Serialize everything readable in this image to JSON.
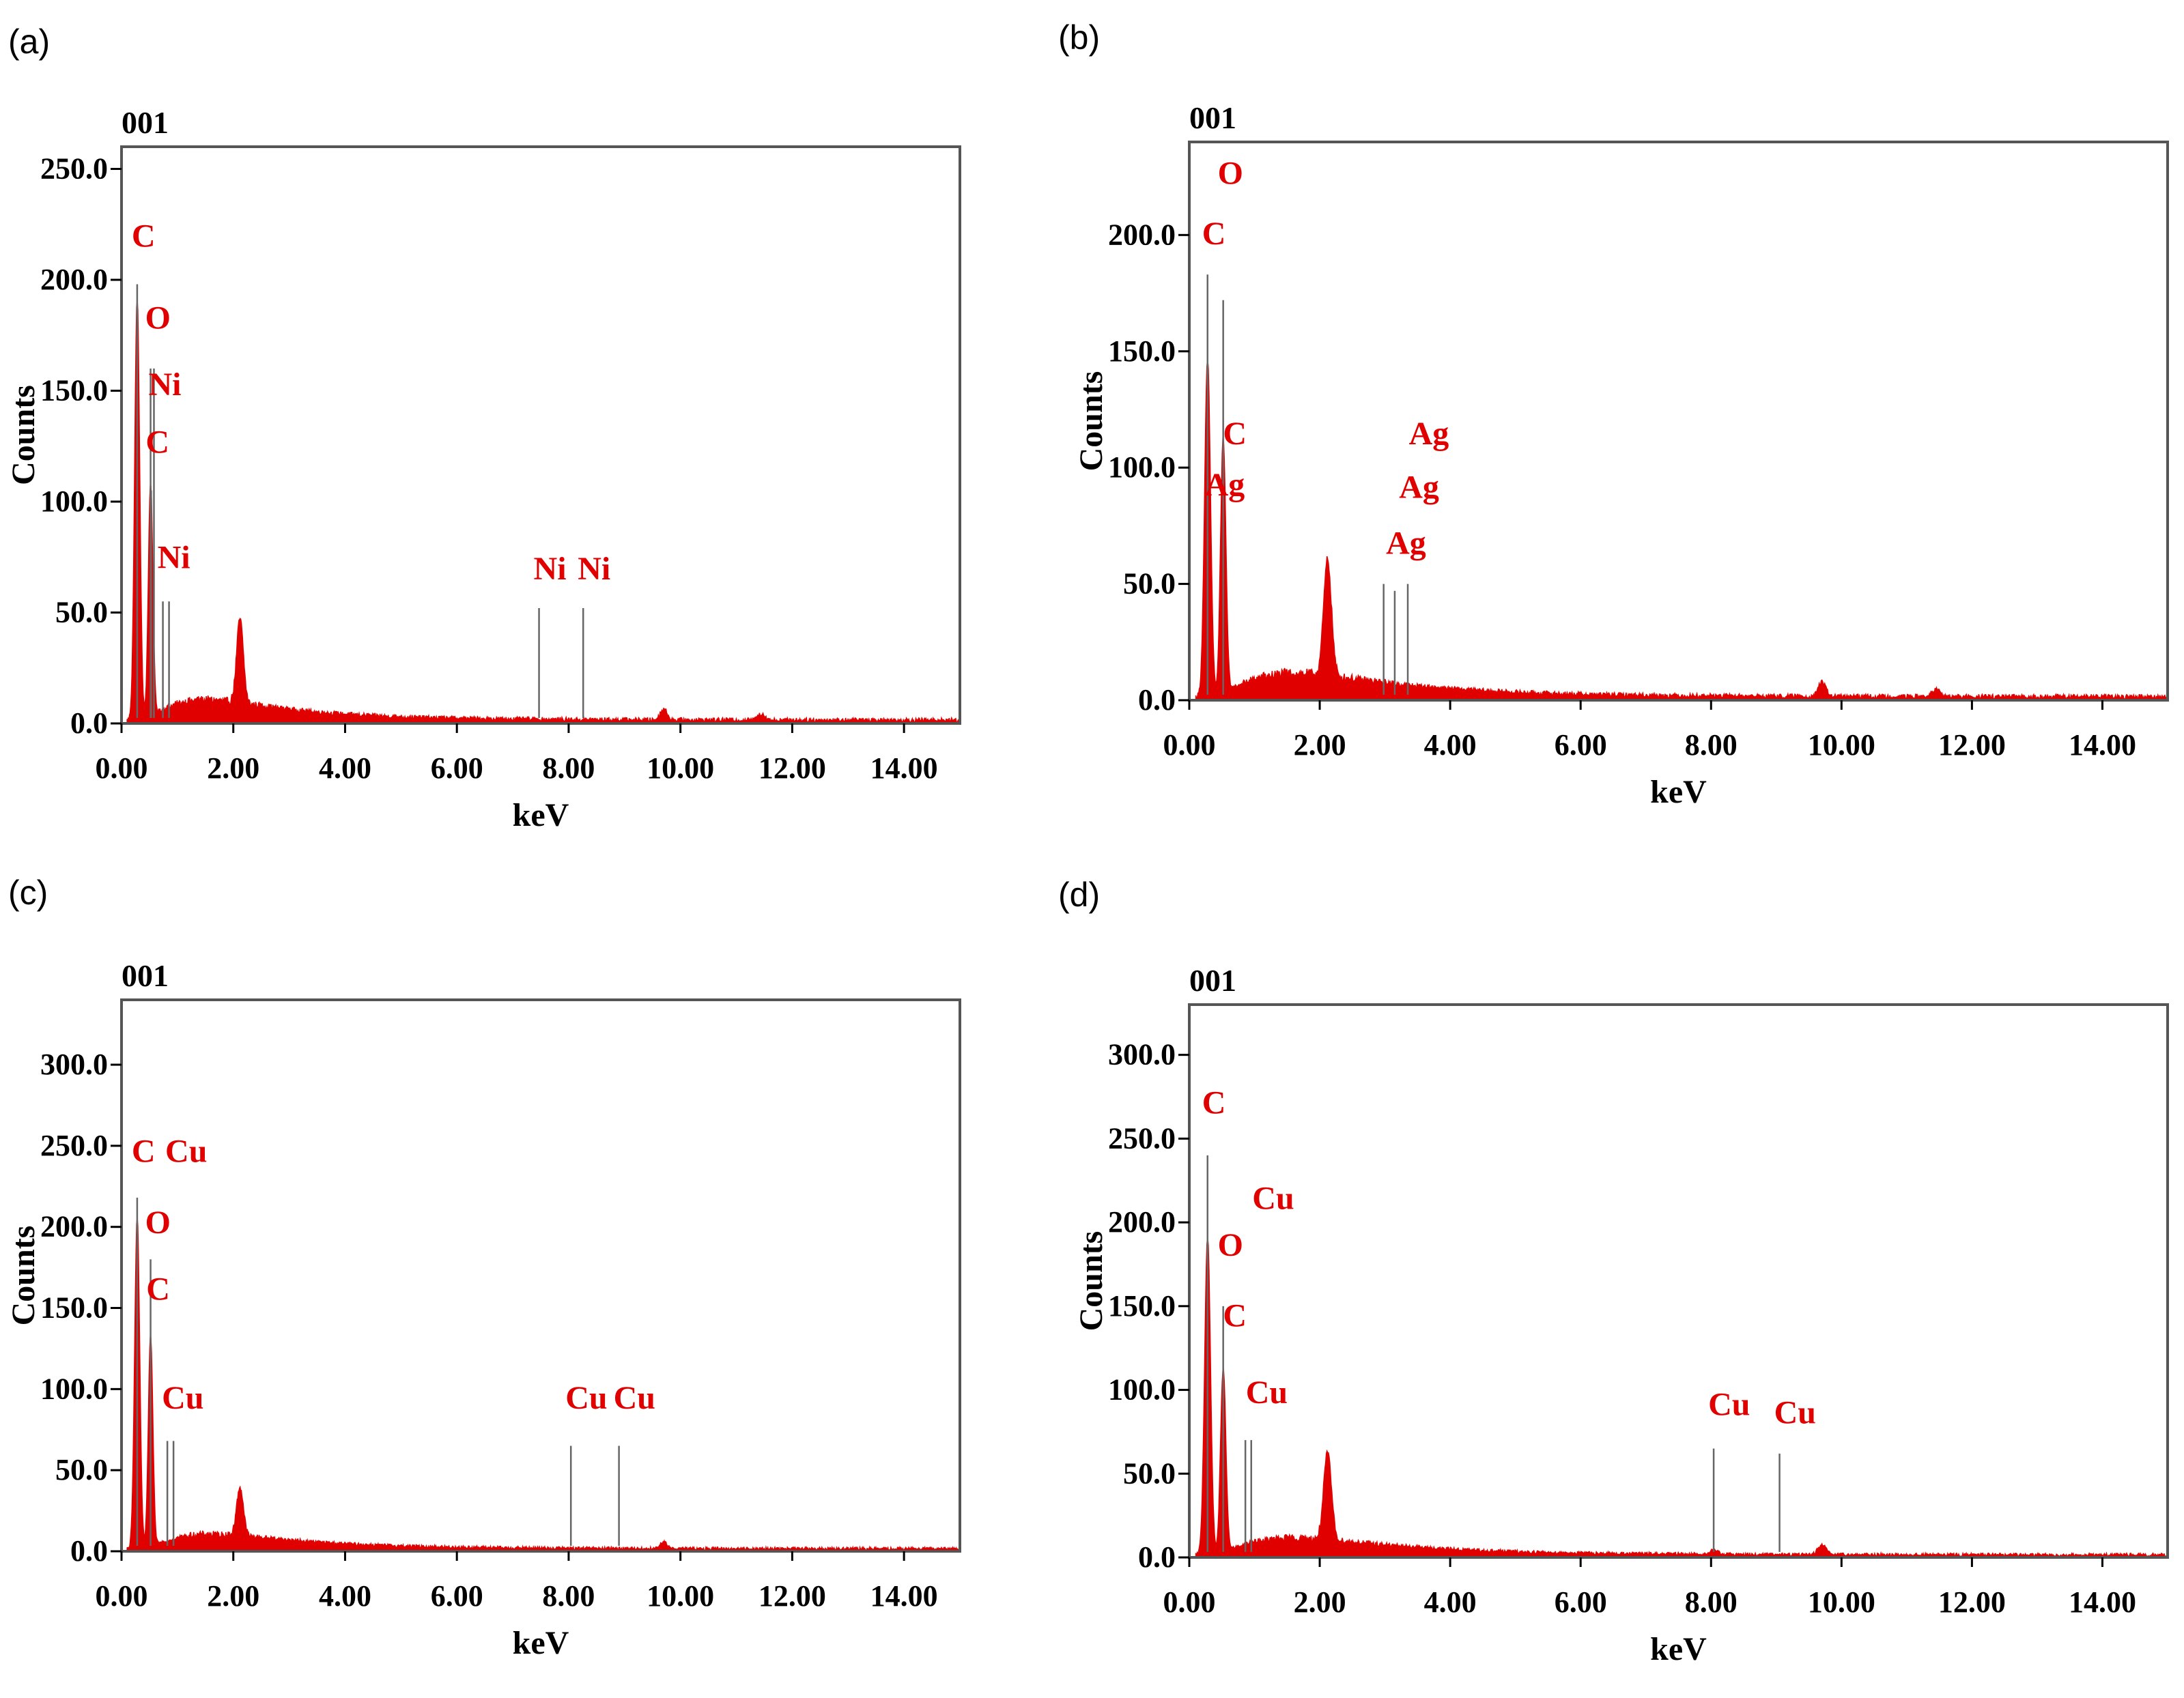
{
  "chart_data": [
    {
      "type": "area",
      "panel_label": "(a)",
      "spectrum_id": "001",
      "xlabel": "keV",
      "ylabel": "Counts",
      "xlim": [
        0,
        15
      ],
      "ylim": [
        0,
        260
      ],
      "x_ticks": [
        "0.00",
        "2.00",
        "4.00",
        "6.00",
        "8.00",
        "10.00",
        "12.00",
        "14.00"
      ],
      "y_ticks": [
        "0.0",
        "50.0",
        "100.0",
        "150.0",
        "200.0",
        "250.0"
      ],
      "y_tick_values": [
        0,
        50,
        100,
        150,
        200,
        250
      ],
      "color": "#e00000",
      "peaks": [
        {
          "x": 0.28,
          "y": 190,
          "w": 0.045
        },
        {
          "x": 0.52,
          "y": 105,
          "w": 0.04
        },
        {
          "x": 2.12,
          "y": 38,
          "w": 0.06
        },
        {
          "x": 9.7,
          "y": 5,
          "w": 0.06
        },
        {
          "x": 11.45,
          "y": 3,
          "w": 0.06
        }
      ],
      "background": {
        "peak": 9,
        "center": 1.5
      },
      "annotations": [
        {
          "label": "C",
          "x": 0.28,
          "label_y": 215,
          "line_top": 198
        },
        {
          "label": "O",
          "x": 0.52,
          "label_y": 178,
          "line_top": 160
        },
        {
          "label": "Ni",
          "x": 0.58,
          "label_y": 148,
          "line_top": 160
        },
        {
          "label": "C",
          "x": 0.53,
          "label_y": 122,
          "line_top": 105
        },
        {
          "label": "Ni",
          "x": 0.74,
          "label_y": 70,
          "line_top": 55
        },
        {
          "label": "",
          "x": 0.85,
          "label_y": 0,
          "line_top": 55
        },
        {
          "label": "Ni",
          "x": 7.47,
          "label_y": 65,
          "line_top": 52
        },
        {
          "label": "Ni",
          "x": 8.26,
          "label_y": 65,
          "line_top": 52
        }
      ]
    },
    {
      "type": "area",
      "panel_label": "(b)",
      "spectrum_id": "001",
      "xlabel": "keV",
      "ylabel": "Counts",
      "xlim": [
        0,
        15
      ],
      "ylim": [
        0,
        240
      ],
      "x_ticks": [
        "0.00",
        "2.00",
        "4.00",
        "6.00",
        "8.00",
        "10.00",
        "12.00",
        "14.00"
      ],
      "y_ticks": [
        "0.0",
        "50.0",
        "100.0",
        "150.0",
        "200.0"
      ],
      "y_tick_values": [
        0,
        50,
        100,
        150,
        200
      ],
      "color": "#e00000",
      "peaks": [
        {
          "x": 0.28,
          "y": 145,
          "w": 0.045
        },
        {
          "x": 0.52,
          "y": 110,
          "w": 0.04
        },
        {
          "x": 2.12,
          "y": 50,
          "w": 0.06
        },
        {
          "x": 9.7,
          "y": 6,
          "w": 0.06
        },
        {
          "x": 11.45,
          "y": 3,
          "w": 0.06
        }
      ],
      "background": {
        "peak": 10,
        "center": 1.6
      },
      "annotations": [
        {
          "label": "O",
          "x": 0.52,
          "label_y": 222,
          "line_top": 172
        },
        {
          "label": "C",
          "x": 0.28,
          "label_y": 196,
          "line_top": 183
        },
        {
          "label": "C",
          "x": 0.6,
          "label_y": 110,
          "line_top": 0
        },
        {
          "label": "Ag",
          "x": 0.32,
          "label_y": 88,
          "line_top": 0
        },
        {
          "label": "Ag",
          "x": 3.45,
          "label_y": 110,
          "line_top": 0
        },
        {
          "label": "Ag",
          "x": 3.3,
          "label_y": 87,
          "line_top": 0
        },
        {
          "label": "Ag",
          "x": 3.1,
          "label_y": 63,
          "line_top": 0
        },
        {
          "label": "",
          "x": 2.98,
          "label_y": 0,
          "line_top": 50
        },
        {
          "label": "",
          "x": 3.15,
          "label_y": 0,
          "line_top": 47
        },
        {
          "label": "",
          "x": 3.35,
          "label_y": 0,
          "line_top": 50
        }
      ]
    },
    {
      "type": "area",
      "panel_label": "(c)",
      "spectrum_id": "001",
      "xlabel": "keV",
      "ylabel": "Counts",
      "xlim": [
        0,
        15
      ],
      "ylim": [
        0,
        340
      ],
      "x_ticks": [
        "0.00",
        "2.00",
        "4.00",
        "6.00",
        "8.00",
        "10.00",
        "12.00",
        "14.00"
      ],
      "y_ticks": [
        "0.0",
        "50.0",
        "100.0",
        "150.0",
        "200.0",
        "250.0",
        "300.0"
      ],
      "y_tick_values": [
        0,
        50,
        100,
        150,
        200,
        250,
        300
      ],
      "color": "#e00000",
      "peaks": [
        {
          "x": 0.28,
          "y": 205,
          "w": 0.045
        },
        {
          "x": 0.52,
          "y": 130,
          "w": 0.04
        },
        {
          "x": 2.12,
          "y": 30,
          "w": 0.06
        },
        {
          "x": 9.7,
          "y": 4,
          "w": 0.06
        }
      ],
      "background": {
        "peak": 9,
        "center": 1.6
      },
      "annotations": [
        {
          "label": "C",
          "x": 0.28,
          "label_y": 240,
          "line_top": 218
        },
        {
          "label": "Cu",
          "x": 0.88,
          "label_y": 240,
          "line_top": 0
        },
        {
          "label": "O",
          "x": 0.52,
          "label_y": 196,
          "line_top": 180
        },
        {
          "label": "C",
          "x": 0.54,
          "label_y": 155,
          "line_top": 0
        },
        {
          "label": "Cu",
          "x": 0.82,
          "label_y": 88,
          "line_top": 68
        },
        {
          "label": "",
          "x": 0.93,
          "label_y": 0,
          "line_top": 68
        },
        {
          "label": "Cu",
          "x": 8.04,
          "label_y": 88,
          "line_top": 65
        },
        {
          "label": "Cu",
          "x": 8.9,
          "label_y": 88,
          "line_top": 65
        }
      ]
    },
    {
      "type": "area",
      "panel_label": "(d)",
      "spectrum_id": "001",
      "xlabel": "keV",
      "ylabel": "Counts",
      "xlim": [
        0,
        15
      ],
      "ylim": [
        0,
        330
      ],
      "x_ticks": [
        "0.00",
        "2.00",
        "4.00",
        "6.00",
        "8.00",
        "10.00",
        "12.00",
        "14.00"
      ],
      "y_ticks": [
        "0.0",
        "50.0",
        "100.0",
        "150.0",
        "200.0",
        "250.0",
        "300.0"
      ],
      "y_tick_values": [
        0,
        50,
        100,
        150,
        200,
        250,
        300
      ],
      "color": "#e00000",
      "peaks": [
        {
          "x": 0.28,
          "y": 190,
          "w": 0.045
        },
        {
          "x": 0.52,
          "y": 110,
          "w": 0.04
        },
        {
          "x": 2.12,
          "y": 52,
          "w": 0.06
        },
        {
          "x": 9.7,
          "y": 6,
          "w": 0.06
        },
        {
          "x": 8.05,
          "y": 3,
          "w": 0.05
        }
      ],
      "background": {
        "peak": 10,
        "center": 1.6
      },
      "annotations": [
        {
          "label": "C",
          "x": 0.28,
          "label_y": 265,
          "line_top": 240
        },
        {
          "label": "Cu",
          "x": 1.05,
          "label_y": 208,
          "line_top": 0
        },
        {
          "label": "O",
          "x": 0.52,
          "label_y": 180,
          "line_top": 150
        },
        {
          "label": "C",
          "x": 0.6,
          "label_y": 138,
          "line_top": 0
        },
        {
          "label": "Cu",
          "x": 0.95,
          "label_y": 92,
          "line_top": 70
        },
        {
          "label": "",
          "x": 0.86,
          "label_y": 0,
          "line_top": 70
        },
        {
          "label": "Cu",
          "x": 8.04,
          "label_y": 85,
          "line_top": 65
        },
        {
          "label": "Cu",
          "x": 9.05,
          "label_y": 80,
          "line_top": 62
        }
      ]
    }
  ]
}
